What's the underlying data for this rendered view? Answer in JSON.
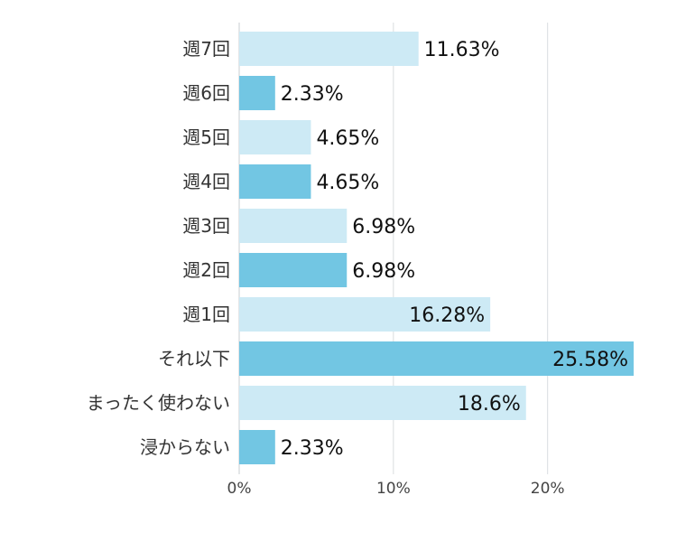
{
  "chart_data": {
    "type": "bar",
    "orientation": "horizontal",
    "title": "",
    "xlabel": "",
    "ylabel": "",
    "categories": [
      "週7回",
      "週6回",
      "週5回",
      "週4回",
      "週3回",
      "週2回",
      "週1回",
      "それ以下",
      "まったく使わない",
      "浸からない"
    ],
    "values": [
      11.63,
      2.33,
      4.65,
      4.65,
      6.98,
      6.98,
      16.28,
      25.58,
      18.6,
      2.33
    ],
    "value_labels": [
      "11.63%",
      "2.33%",
      "4.65%",
      "4.65%",
      "6.98%",
      "6.98%",
      "16.28%",
      "25.58%",
      "18.6%",
      "2.33%"
    ],
    "xlim": [
      0,
      25.58
    ],
    "x_ticks": [
      0,
      10,
      20
    ],
    "x_tick_labels": [
      "0%",
      "10%",
      "20%"
    ],
    "grid": true,
    "legend": "none",
    "colors": {
      "bar_light": "#cdeaf5",
      "bar_dark": "#72c6e3"
    }
  }
}
